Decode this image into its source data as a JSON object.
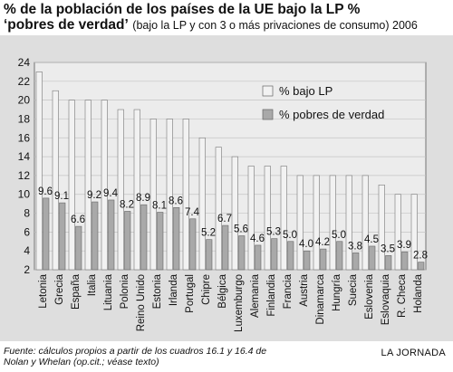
{
  "header": {
    "title_line1": "% de la población de los países de la UE bajo la LP %",
    "title_line2": "‘pobres de verdad’",
    "subtitle": "(bajo la LP y con 3 o más privaciones de consumo) 2006"
  },
  "footer": {
    "source": "Fuente: cálculos propios a partir de los cuadros 16.1 y 16.4 de Nolan y Whelan (op.cit.; véase texto)",
    "credit": "LA JORNADA"
  },
  "chart_data": {
    "type": "bar",
    "title": "% de la población de los países de la UE bajo la LP % ‘pobres de verdad’",
    "categories": [
      "Letonia",
      "Grecia",
      "España",
      "Italia",
      "Lituania",
      "Polonia",
      "Reino Unido",
      "Estonia",
      "Irlanda",
      "Portugal",
      "Chipre",
      "Bélgica",
      "Luxemburgo",
      "Alemania",
      "Finlandia",
      "Francia",
      "Austria",
      "Dinamarca",
      "Hungría",
      "Suecia",
      "Eslovenia",
      "Eslovaquia",
      "R. Checa",
      "Holanda"
    ],
    "series": [
      {
        "name": "% bajo LP",
        "color": "#f2f2f2",
        "values": [
          23,
          21,
          20,
          20,
          20,
          19,
          19,
          18,
          18,
          18,
          16,
          15,
          14,
          13,
          13,
          13,
          12,
          12,
          12,
          12,
          12,
          11,
          10,
          10
        ]
      },
      {
        "name": "% pobres de verdad",
        "color": "#a9a9a9",
        "values": [
          9.6,
          9.1,
          6.6,
          9.2,
          9.4,
          8.2,
          8.9,
          8.1,
          8.6,
          7.4,
          5.2,
          6.7,
          5.6,
          4.6,
          5.3,
          5.0,
          4.0,
          4.2,
          5.0,
          3.8,
          4.5,
          3.5,
          3.9,
          2.8
        ],
        "labels": [
          "9.6",
          "9.1",
          "6.6",
          "9.2",
          "9.4",
          "8.2",
          "8.9",
          "8.1",
          "8.6",
          "7.4",
          "5.2",
          "6.7",
          "5.6",
          "4.6",
          "5.3",
          "5.0",
          "4.0",
          "4.2",
          "5.0",
          "3.8",
          "4.5",
          "3.5",
          "3.9",
          "2.8"
        ]
      }
    ],
    "yticks": [
      2,
      4,
      6,
      8,
      10,
      12,
      14,
      16,
      18,
      20,
      22,
      24
    ],
    "ylim": [
      2,
      24
    ],
    "xlabel": "",
    "ylabel": "",
    "grid": true,
    "legend": "top-right"
  }
}
